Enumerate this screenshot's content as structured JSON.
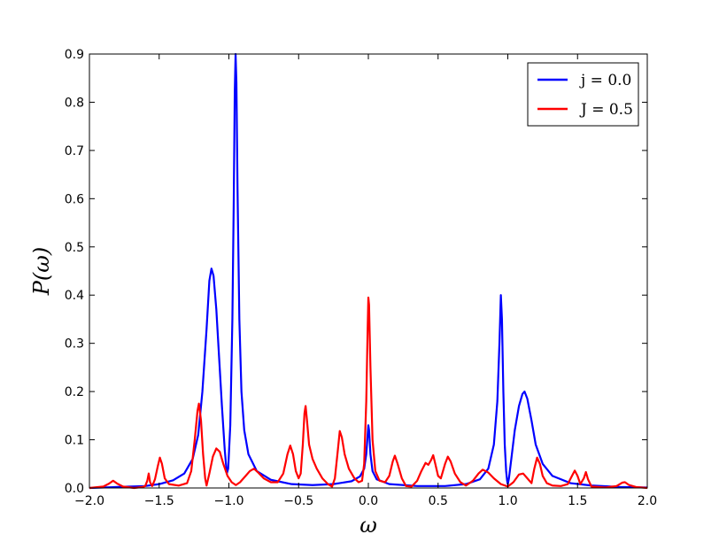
{
  "chart_data": {
    "type": "line",
    "title": "",
    "xlabel": "ω",
    "ylabel": "P(ω)",
    "xlim": [
      -2.0,
      2.0
    ],
    "ylim": [
      0.0,
      0.9
    ],
    "x_ticks": [
      "−2.0",
      "−1.5",
      "−1.0",
      "−0.5",
      "0.0",
      "0.5",
      "1.0",
      "1.5",
      "2.0"
    ],
    "y_ticks": [
      "0.0",
      "0.1",
      "0.2",
      "0.3",
      "0.4",
      "0.5",
      "0.6",
      "0.7",
      "0.8",
      "0.9"
    ],
    "grid": false,
    "legend_position": "top-right",
    "series": [
      {
        "name": "j = 0.0",
        "color": "#0000ff",
        "points": [
          [
            -2.0,
            0.0
          ],
          [
            -1.8,
            0.002
          ],
          [
            -1.6,
            0.004
          ],
          [
            -1.5,
            0.008
          ],
          [
            -1.4,
            0.016
          ],
          [
            -1.32,
            0.03
          ],
          [
            -1.26,
            0.06
          ],
          [
            -1.22,
            0.11
          ],
          [
            -1.19,
            0.2
          ],
          [
            -1.16,
            0.33
          ],
          [
            -1.14,
            0.43
          ],
          [
            -1.125,
            0.455
          ],
          [
            -1.11,
            0.44
          ],
          [
            -1.09,
            0.37
          ],
          [
            -1.07,
            0.27
          ],
          [
            -1.05,
            0.17
          ],
          [
            -1.03,
            0.08
          ],
          [
            -1.015,
            0.03
          ],
          [
            -1.005,
            0.04
          ],
          [
            -0.99,
            0.13
          ],
          [
            -0.975,
            0.35
          ],
          [
            -0.965,
            0.6
          ],
          [
            -0.958,
            0.82
          ],
          [
            -0.952,
            0.9
          ],
          [
            -0.946,
            0.84
          ],
          [
            -0.938,
            0.62
          ],
          [
            -0.925,
            0.35
          ],
          [
            -0.91,
            0.2
          ],
          [
            -0.89,
            0.12
          ],
          [
            -0.86,
            0.07
          ],
          [
            -0.8,
            0.035
          ],
          [
            -0.7,
            0.017
          ],
          [
            -0.55,
            0.008
          ],
          [
            -0.4,
            0.006
          ],
          [
            -0.25,
            0.008
          ],
          [
            -0.12,
            0.014
          ],
          [
            -0.06,
            0.024
          ],
          [
            -0.03,
            0.04
          ],
          [
            -0.015,
            0.07
          ],
          [
            -0.005,
            0.11
          ],
          [
            0.0,
            0.13
          ],
          [
            0.005,
            0.12
          ],
          [
            0.015,
            0.07
          ],
          [
            0.03,
            0.035
          ],
          [
            0.06,
            0.018
          ],
          [
            0.15,
            0.008
          ],
          [
            0.35,
            0.004
          ],
          [
            0.55,
            0.004
          ],
          [
            0.7,
            0.008
          ],
          [
            0.8,
            0.018
          ],
          [
            0.86,
            0.04
          ],
          [
            0.9,
            0.09
          ],
          [
            0.925,
            0.18
          ],
          [
            0.94,
            0.3
          ],
          [
            0.95,
            0.4
          ],
          [
            0.958,
            0.35
          ],
          [
            0.968,
            0.2
          ],
          [
            0.978,
            0.09
          ],
          [
            0.988,
            0.035
          ],
          [
            0.995,
            0.015
          ],
          [
            1.0,
            0.008
          ],
          [
            1.008,
            0.02
          ],
          [
            1.025,
            0.06
          ],
          [
            1.05,
            0.12
          ],
          [
            1.08,
            0.17
          ],
          [
            1.105,
            0.195
          ],
          [
            1.12,
            0.2
          ],
          [
            1.14,
            0.185
          ],
          [
            1.17,
            0.14
          ],
          [
            1.2,
            0.09
          ],
          [
            1.25,
            0.05
          ],
          [
            1.32,
            0.025
          ],
          [
            1.45,
            0.01
          ],
          [
            1.6,
            0.005
          ],
          [
            1.8,
            0.002
          ],
          [
            2.0,
            0.001
          ]
        ]
      },
      {
        "name": "J = 0.5",
        "color": "#ff0000",
        "points": [
          [
            -2.0,
            0.0
          ],
          [
            -1.9,
            0.003
          ],
          [
            -1.86,
            0.009
          ],
          [
            -1.83,
            0.015
          ],
          [
            -1.8,
            0.009
          ],
          [
            -1.76,
            0.003
          ],
          [
            -1.68,
            0.0
          ],
          [
            -1.62,
            0.002
          ],
          [
            -1.6,
            0.004
          ],
          [
            -1.585,
            0.015
          ],
          [
            -1.575,
            0.03
          ],
          [
            -1.565,
            0.012
          ],
          [
            -1.55,
            0.004
          ],
          [
            -1.53,
            0.018
          ],
          [
            -1.51,
            0.045
          ],
          [
            -1.495,
            0.063
          ],
          [
            -1.48,
            0.05
          ],
          [
            -1.46,
            0.02
          ],
          [
            -1.43,
            0.008
          ],
          [
            -1.36,
            0.005
          ],
          [
            -1.3,
            0.01
          ],
          [
            -1.27,
            0.035
          ],
          [
            -1.245,
            0.1
          ],
          [
            -1.225,
            0.16
          ],
          [
            -1.215,
            0.175
          ],
          [
            -1.2,
            0.14
          ],
          [
            -1.185,
            0.07
          ],
          [
            -1.17,
            0.02
          ],
          [
            -1.16,
            0.005
          ],
          [
            -1.14,
            0.03
          ],
          [
            -1.115,
            0.065
          ],
          [
            -1.09,
            0.082
          ],
          [
            -1.065,
            0.075
          ],
          [
            -1.04,
            0.05
          ],
          [
            -1.01,
            0.025
          ],
          [
            -0.98,
            0.012
          ],
          [
            -0.95,
            0.006
          ],
          [
            -0.92,
            0.012
          ],
          [
            -0.88,
            0.025
          ],
          [
            -0.85,
            0.035
          ],
          [
            -0.82,
            0.04
          ],
          [
            -0.79,
            0.032
          ],
          [
            -0.75,
            0.02
          ],
          [
            -0.7,
            0.012
          ],
          [
            -0.65,
            0.012
          ],
          [
            -0.61,
            0.03
          ],
          [
            -0.58,
            0.07
          ],
          [
            -0.56,
            0.088
          ],
          [
            -0.54,
            0.07
          ],
          [
            -0.52,
            0.035
          ],
          [
            -0.5,
            0.02
          ],
          [
            -0.485,
            0.03
          ],
          [
            -0.47,
            0.09
          ],
          [
            -0.458,
            0.155
          ],
          [
            -0.45,
            0.17
          ],
          [
            -0.44,
            0.14
          ],
          [
            -0.425,
            0.09
          ],
          [
            -0.4,
            0.06
          ],
          [
            -0.37,
            0.04
          ],
          [
            -0.33,
            0.02
          ],
          [
            -0.29,
            0.008
          ],
          [
            -0.26,
            0.003
          ],
          [
            -0.24,
            0.02
          ],
          [
            -0.22,
            0.075
          ],
          [
            -0.205,
            0.118
          ],
          [
            -0.19,
            0.105
          ],
          [
            -0.17,
            0.07
          ],
          [
            -0.14,
            0.04
          ],
          [
            -0.1,
            0.02
          ],
          [
            -0.07,
            0.012
          ],
          [
            -0.045,
            0.015
          ],
          [
            -0.03,
            0.05
          ],
          [
            -0.015,
            0.18
          ],
          [
            -0.005,
            0.33
          ],
          [
            0.0,
            0.395
          ],
          [
            0.005,
            0.38
          ],
          [
            0.015,
            0.25
          ],
          [
            0.03,
            0.1
          ],
          [
            0.05,
            0.035
          ],
          [
            0.08,
            0.015
          ],
          [
            0.12,
            0.012
          ],
          [
            0.15,
            0.025
          ],
          [
            0.175,
            0.055
          ],
          [
            0.19,
            0.067
          ],
          [
            0.21,
            0.05
          ],
          [
            0.24,
            0.02
          ],
          [
            0.27,
            0.004
          ],
          [
            0.31,
            0.003
          ],
          [
            0.35,
            0.015
          ],
          [
            0.38,
            0.035
          ],
          [
            0.41,
            0.052
          ],
          [
            0.43,
            0.048
          ],
          [
            0.45,
            0.058
          ],
          [
            0.465,
            0.068
          ],
          [
            0.48,
            0.05
          ],
          [
            0.5,
            0.025
          ],
          [
            0.52,
            0.02
          ],
          [
            0.55,
            0.05
          ],
          [
            0.57,
            0.065
          ],
          [
            0.59,
            0.055
          ],
          [
            0.62,
            0.03
          ],
          [
            0.66,
            0.012
          ],
          [
            0.7,
            0.005
          ],
          [
            0.75,
            0.015
          ],
          [
            0.79,
            0.03
          ],
          [
            0.82,
            0.038
          ],
          [
            0.86,
            0.032
          ],
          [
            0.9,
            0.02
          ],
          [
            0.95,
            0.008
          ],
          [
            1.0,
            0.003
          ],
          [
            1.04,
            0.012
          ],
          [
            1.08,
            0.028
          ],
          [
            1.11,
            0.03
          ],
          [
            1.14,
            0.02
          ],
          [
            1.17,
            0.01
          ],
          [
            1.19,
            0.04
          ],
          [
            1.21,
            0.063
          ],
          [
            1.23,
            0.05
          ],
          [
            1.25,
            0.025
          ],
          [
            1.28,
            0.01
          ],
          [
            1.32,
            0.005
          ],
          [
            1.38,
            0.004
          ],
          [
            1.43,
            0.008
          ],
          [
            1.46,
            0.025
          ],
          [
            1.48,
            0.036
          ],
          [
            1.5,
            0.025
          ],
          [
            1.52,
            0.008
          ],
          [
            1.545,
            0.02
          ],
          [
            1.56,
            0.033
          ],
          [
            1.575,
            0.018
          ],
          [
            1.6,
            0.003
          ],
          [
            1.7,
            0.001
          ],
          [
            1.78,
            0.004
          ],
          [
            1.82,
            0.011
          ],
          [
            1.84,
            0.012
          ],
          [
            1.87,
            0.006
          ],
          [
            1.92,
            0.002
          ],
          [
            2.0,
            0.0
          ]
        ]
      }
    ]
  }
}
